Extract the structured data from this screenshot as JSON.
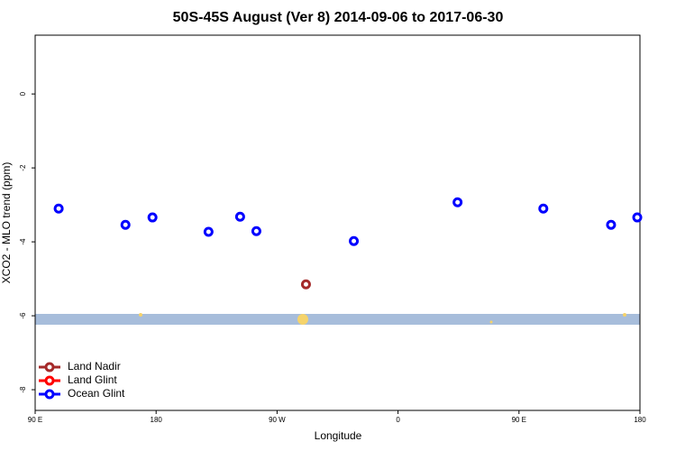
{
  "chart_data": {
    "type": "scatter",
    "title": "50S-45S August (Ver 8)   2014-09-06 to 2017-06-30",
    "x_label": "Longitude",
    "y_label": "XCO2 - MLO trend (ppm)",
    "xlim": [
      90,
      540
    ],
    "xticks": [
      {
        "value": 90,
        "label": "90 E"
      },
      {
        "value": 180,
        "label": "180"
      },
      {
        "value": 270,
        "label": "90 W"
      },
      {
        "value": 360,
        "label": "0"
      },
      {
        "value": 450,
        "label": "90 E"
      },
      {
        "value": 540,
        "label": "180"
      }
    ],
    "ylim": [
      -8.56,
      1.59
    ],
    "yticks": [
      0,
      -2,
      -4,
      -6,
      -8
    ],
    "legend_position": "bottom-left",
    "series": [
      {
        "name": "Land Nadir",
        "color": "#a52a2a",
        "x": [
          291.5
        ],
        "values": [
          -5.15
        ]
      },
      {
        "name": "Land Glint",
        "color": "#ff0000",
        "x": [],
        "values": []
      },
      {
        "name": "Ocean Glint",
        "color": "#0000ff",
        "x": [
          107.5,
          157.2,
          177.3,
          219,
          242.5,
          254.6,
          327.1,
          404.3,
          468.1,
          518.5,
          538
        ],
        "values": [
          -3.1,
          -3.54,
          -3.34,
          -3.73,
          -3.32,
          -3.71,
          -3.98,
          -2.93,
          -3.1,
          -3.54,
          -3.34
        ]
      }
    ]
  }
}
